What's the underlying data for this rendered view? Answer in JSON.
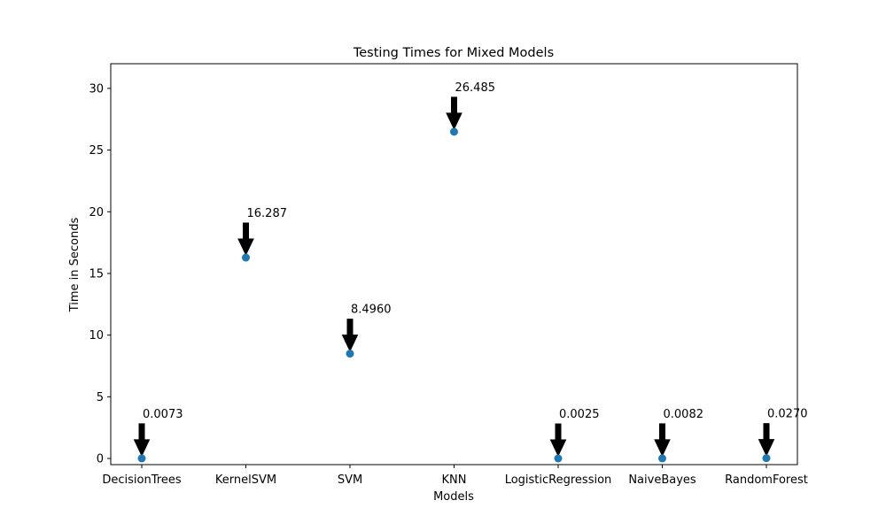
{
  "chart_data": {
    "type": "scatter",
    "title": "Testing Times for Mixed Models",
    "xlabel": "Models",
    "ylabel": "Time in Seconds",
    "categories": [
      "DecisionTrees",
      "KernelSVM",
      "SVM",
      "KNN",
      "LogisticRegression",
      "NaiveBayes",
      "RandomForest"
    ],
    "values": [
      0.0073,
      16.287,
      8.496,
      26.485,
      0.0025,
      0.0082,
      0.027
    ],
    "data_labels": [
      "0.0073",
      "16.287",
      "8.4960",
      "26.485",
      "0.0025",
      "0.0082",
      "0.0270"
    ],
    "ylim": [
      -0.5,
      32
    ],
    "yticks": [
      0,
      5,
      10,
      15,
      20,
      25,
      30
    ],
    "grid": false,
    "marker_color": "#1f77b4",
    "arrow_color": "#000000"
  }
}
